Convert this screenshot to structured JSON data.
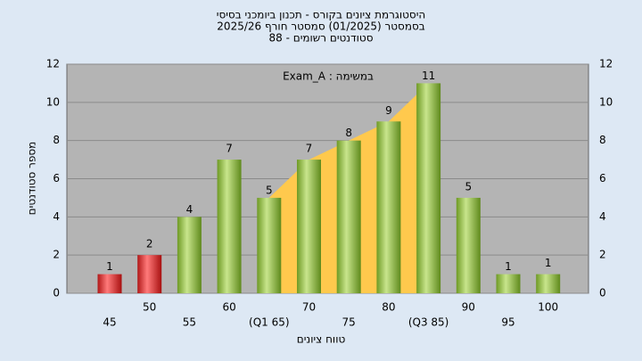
{
  "chart_data": {
    "type": "bar",
    "title": "היסטוגרמת ציונים בקורס - תכנון ביומכני בסיסי",
    "subtitle": "בסמסטר (01/2025) סמסטר חורף 2025/26",
    "subtitle2": "סטודנטים רשומים - 88",
    "annotation": "Exam_A : במשימה",
    "x_label": "טווח ציונים",
    "y_label": "מספר סטודנטים",
    "categories": [
      "45",
      "50",
      "55",
      "60",
      "(Q1 65)",
      "70",
      "75",
      "80",
      "(Q3 85)",
      "90",
      "95",
      "100"
    ],
    "values": [
      1,
      2,
      4,
      7,
      5,
      7,
      8,
      9,
      11,
      5,
      1,
      1
    ],
    "colors": [
      "#d42a2a",
      "#d42a2a",
      "#8fbf3c",
      "#8fbf3c",
      "#8fbf3c",
      "#8fbf3c",
      "#8fbf3c",
      "#8fbf3c",
      "#8fbf3c",
      "#8fbf3c",
      "#8fbf3c",
      "#8fbf3c"
    ],
    "quartile_color": "#ffc94d",
    "ylim": [
      0,
      12
    ],
    "yticks": [
      0,
      2,
      4,
      6,
      8,
      10,
      12
    ],
    "grid": true
  }
}
